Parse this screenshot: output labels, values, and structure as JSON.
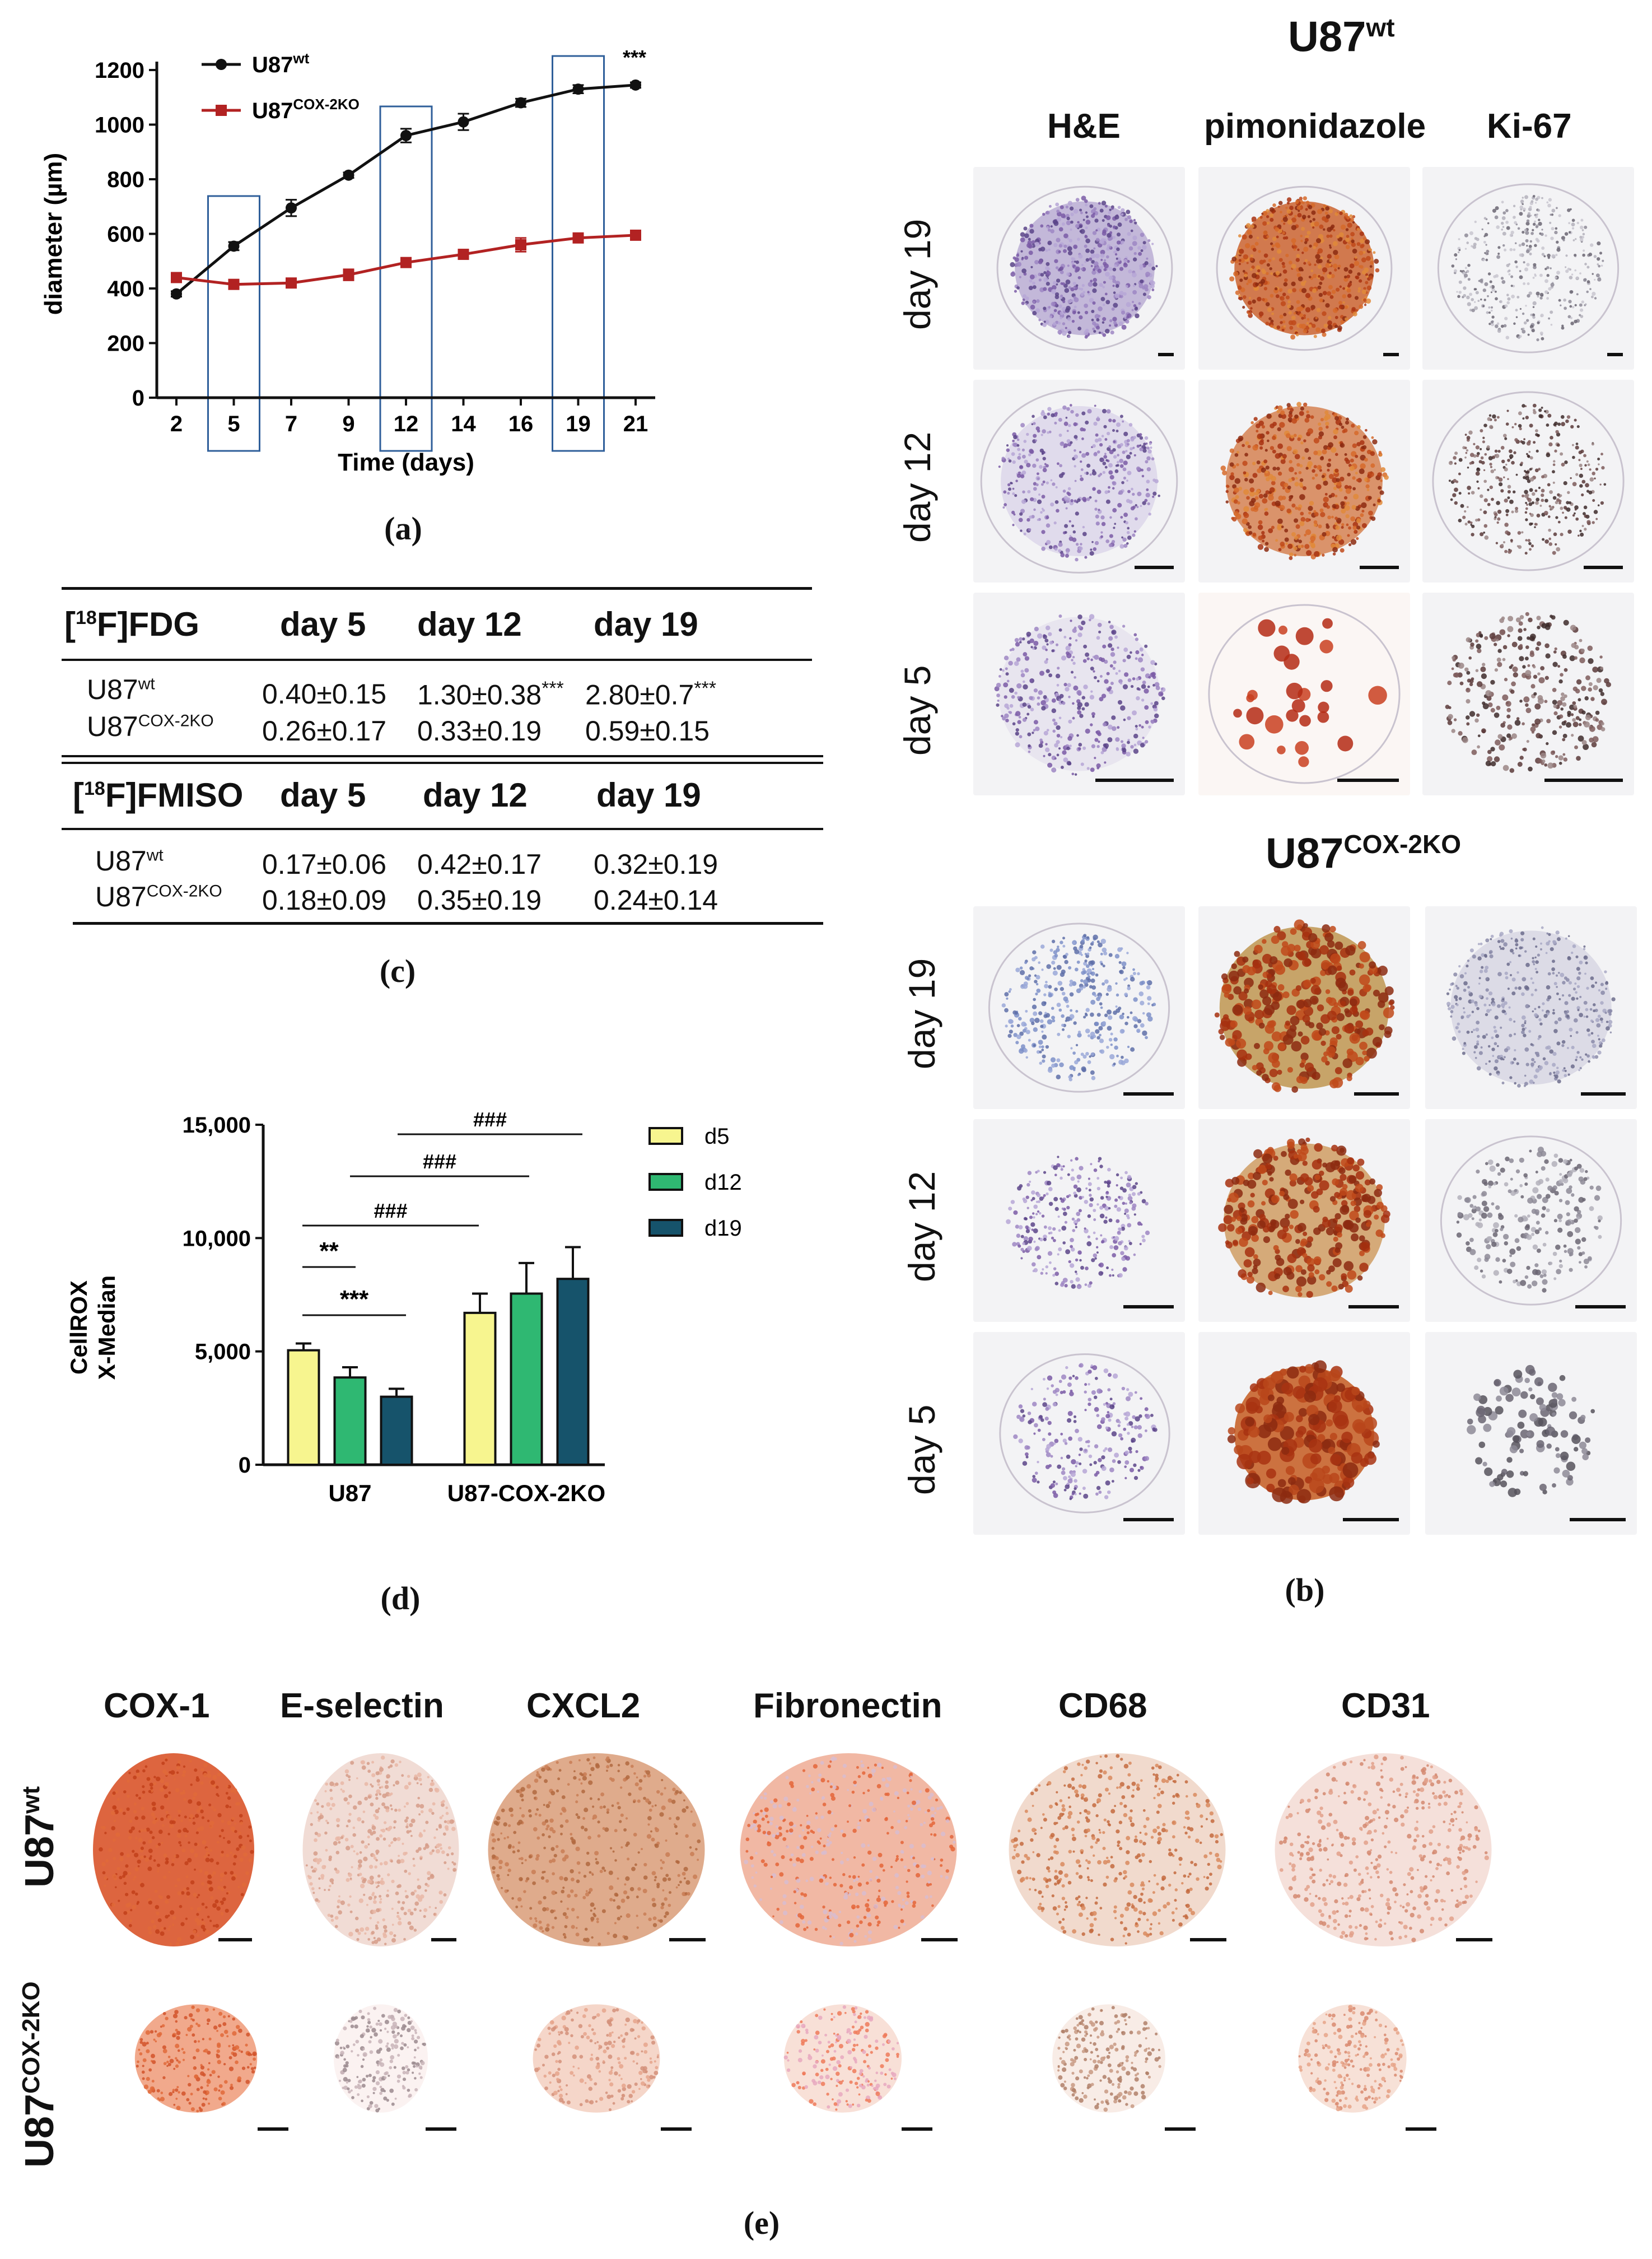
{
  "panel_a": {
    "letter": "(a)",
    "legend": [
      {
        "name": "U87",
        "sup": "wt",
        "color": "#111111"
      },
      {
        "name": "U87",
        "sup": "COX-2KO",
        "color": "#b22222"
      }
    ],
    "significance": "***",
    "xlabel": "Time (days)",
    "ylabel": "diameter (µm)"
  },
  "panel_b": {
    "letter": "(b)",
    "title_wt": {
      "base": "U87",
      "sup": "wt"
    },
    "title_ko": {
      "base": "U87",
      "sup": "COX-2KO"
    },
    "columns": [
      "H&E",
      "pimonidazole",
      "Ki-67"
    ],
    "rows": [
      "day 19",
      "day 12",
      "day 5"
    ]
  },
  "panel_c": {
    "letter": "(c)",
    "fdg": {
      "header": {
        "pre": "[",
        "sup": "18",
        "post": "F]FDG"
      },
      "days": [
        "day 5",
        "day 12",
        "day 19"
      ],
      "rows": [
        {
          "label": "U87",
          "sup": "wt",
          "values": [
            "0.40±0.15",
            "1.30±0.38",
            "2.80±0.7"
          ],
          "stars": [
            "",
            "***",
            "***"
          ]
        },
        {
          "label": "U87",
          "sup": "COX-2KO",
          "values": [
            "0.26±0.17",
            "0.33±0.19",
            "0.59±0.15"
          ],
          "stars": [
            "",
            "",
            ""
          ]
        }
      ]
    },
    "fmiso": {
      "header": {
        "pre": "[",
        "sup": "18",
        "post": "F]FMISO"
      },
      "days": [
        "day 5",
        "day 12",
        "day 19"
      ],
      "rows": [
        {
          "label": "U87",
          "sup": "wt",
          "values": [
            "0.17±0.06",
            "0.42±0.17",
            "0.32±0.19"
          ]
        },
        {
          "label": "U87",
          "sup": "COX-2KO",
          "values": [
            "0.18±0.09",
            "0.35±0.19",
            "0.24±0.14"
          ]
        }
      ]
    }
  },
  "panel_d": {
    "letter": "(d)",
    "ylabel_line1": "CellROX",
    "ylabel_line2": "X-Median",
    "legend": [
      {
        "name": "d5",
        "color": "#f7f58f"
      },
      {
        "name": "d12",
        "color": "#2fb872"
      },
      {
        "name": "d19",
        "color": "#16536b"
      }
    ],
    "brackets": [
      "###",
      "###",
      "###",
      "**",
      "***"
    ]
  },
  "panel_e": {
    "letter": "(e)",
    "columns": [
      "COX-1",
      "E-selectin",
      "CXCL2",
      "Fibronectin",
      "CD68",
      "CD31"
    ],
    "row_wt": {
      "base": "U87",
      "sup": "wt"
    },
    "row_ko": {
      "base": "U87",
      "sup": "COX-2KO"
    }
  },
  "chart_data": [
    {
      "type": "line",
      "x": [
        2,
        5,
        7,
        9,
        12,
        14,
        16,
        19,
        21
      ],
      "xticks": [
        "2",
        "5",
        "7",
        "9",
        "12",
        "14",
        "16",
        "19",
        "21"
      ],
      "series": [
        {
          "name": "U87wt",
          "values": [
            380,
            555,
            695,
            815,
            960,
            1010,
            1080,
            1130,
            1145
          ],
          "errors": [
            10,
            15,
            30,
            10,
            25,
            30,
            15,
            15,
            10
          ],
          "color": "#111111"
        },
        {
          "name": "U87COX-2KO",
          "values": [
            440,
            415,
            420,
            450,
            495,
            525,
            560,
            585,
            595
          ],
          "errors": [
            15,
            10,
            10,
            20,
            10,
            15,
            25,
            10,
            15
          ],
          "color": "#b22222"
        }
      ],
      "ylim": [
        0,
        1200
      ],
      "yticks": [
        "0",
        "200",
        "400",
        "600",
        "800",
        "1000",
        "1200"
      ],
      "highlight_x": [
        5,
        12,
        19
      ],
      "xlabel": "Time (days)",
      "ylabel": "diameter (µm)"
    },
    {
      "type": "bar",
      "categories": [
        "U87",
        "U87-COX-2KO"
      ],
      "series": [
        {
          "name": "d5",
          "values": [
            5050,
            6700
          ],
          "errors": [
            300,
            850
          ],
          "color": "#f7f58f"
        },
        {
          "name": "d12",
          "values": [
            3850,
            7550
          ],
          "errors": [
            450,
            1350
          ],
          "color": "#2fb872"
        },
        {
          "name": "d19",
          "values": [
            3000,
            8200
          ],
          "errors": [
            350,
            1400
          ],
          "color": "#16536b"
        }
      ],
      "ylim": [
        0,
        15000
      ],
      "yticks": [
        "0",
        "5,000",
        "10,000",
        "15,000"
      ],
      "ylabel": "CellROX X-Median",
      "legend": "right"
    }
  ]
}
